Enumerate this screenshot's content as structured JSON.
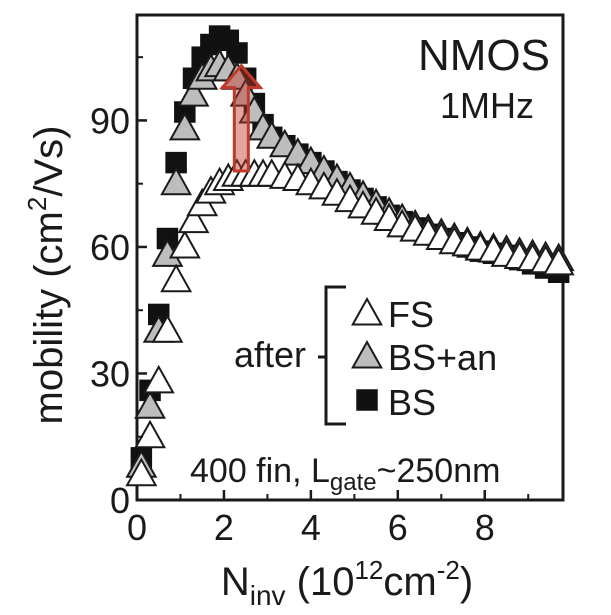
{
  "chart_data": {
    "type": "scatter",
    "annotations": {
      "device": "NMOS",
      "frequency": "1MHz",
      "condition_prefix": "after",
      "sample_main": "400 fin, L",
      "sample_sub": "gate",
      "sample_tail": "~250nm"
    },
    "xaxis": {
      "label_main": "N",
      "label_sub": "inv",
      "label_unit_open": " (10",
      "label_unit_exp": "12",
      "label_unit_mid": "cm",
      "label_unit_exp2": "-2",
      "label_unit_close": ")",
      "range": [
        0,
        9.8
      ],
      "ticks": [
        0,
        2,
        4,
        6,
        8
      ],
      "tick_labels": [
        "0",
        "2",
        "4",
        "6",
        "8"
      ]
    },
    "yaxis": {
      "label_main": "mobility (cm",
      "label_exp": "2",
      "label_tail": "/Vs)",
      "range": [
        0,
        115
      ],
      "ticks": [
        0,
        30,
        60,
        90
      ],
      "tick_labels": [
        "0",
        "30",
        "60",
        "90"
      ]
    },
    "series": [
      {
        "name": "FS",
        "marker": "triangle",
        "fill": "#ffffff",
        "stroke": "#1a1a1a",
        "x": [
          0.1,
          0.3,
          0.5,
          0.7,
          0.9,
          1.1,
          1.3,
          1.5,
          1.7,
          1.9,
          2.1,
          2.3,
          2.5,
          2.7,
          2.9,
          3.1,
          3.4,
          3.7,
          4.0,
          4.3,
          4.6,
          4.9,
          5.2,
          5.5,
          5.8,
          6.1,
          6.4,
          6.7,
          7.0,
          7.3,
          7.6,
          7.9,
          8.2,
          8.5,
          8.8,
          9.1,
          9.4,
          9.7
        ],
        "y": [
          6,
          15,
          28,
          40,
          52,
          60,
          66,
          70,
          73,
          75,
          76,
          77,
          77,
          77,
          77,
          77,
          76.5,
          76,
          75,
          74,
          72.5,
          71,
          69.5,
          68,
          66.5,
          65,
          64,
          63,
          62,
          61,
          60.5,
          59.5,
          59,
          58,
          57.5,
          57,
          56.5,
          56
        ]
      },
      {
        "name": "BS+an",
        "marker": "triangle",
        "fill": "#bdbdbd",
        "stroke": "#1a1a1a",
        "x": [
          0.1,
          0.3,
          0.5,
          0.7,
          0.9,
          1.1,
          1.3,
          1.5,
          1.7,
          1.9,
          2.1,
          2.3,
          2.5,
          2.7,
          2.9,
          3.1,
          3.4,
          3.7,
          4.0,
          4.3,
          4.6,
          4.9,
          5.2,
          5.5,
          5.8,
          6.1,
          6.4,
          6.7,
          7.0,
          7.3,
          7.6,
          7.9,
          8.2,
          8.5,
          8.8,
          9.1,
          9.4,
          9.7
        ],
        "y": [
          8,
          22,
          40,
          58,
          75,
          88,
          96,
          100,
          102,
          103,
          102,
          100,
          96,
          92,
          88,
          86,
          84,
          82,
          80,
          78,
          76,
          74,
          72,
          70,
          68,
          66.5,
          65,
          64,
          63,
          62,
          61,
          60,
          59.5,
          59,
          58.5,
          58,
          57.5,
          57
        ]
      },
      {
        "name": "BS",
        "marker": "square",
        "fill": "#111111",
        "stroke": "#111111",
        "x": [
          0.1,
          0.3,
          0.5,
          0.7,
          0.9,
          1.1,
          1.3,
          1.5,
          1.7,
          1.9,
          2.1,
          2.3,
          2.5,
          2.7,
          2.9,
          3.1,
          3.4,
          3.7,
          4.0,
          4.3,
          4.6,
          4.9,
          5.2,
          5.5,
          5.8,
          6.1,
          6.4,
          6.7,
          7.0,
          7.3,
          7.6,
          7.9,
          8.2,
          8.5,
          8.8,
          9.1,
          9.4,
          9.7
        ],
        "y": [
          10,
          26,
          44,
          62,
          80,
          92,
          100,
          105,
          108,
          110,
          109,
          106,
          100,
          94,
          89,
          86,
          84,
          82,
          80,
          78,
          75.5,
          73.5,
          71.5,
          69.5,
          67.5,
          66,
          64.5,
          63,
          62,
          61,
          60,
          59,
          58.5,
          58,
          57,
          56,
          55,
          54
        ]
      }
    ],
    "arrow": {
      "x": 2.4,
      "y_from": 78,
      "y_to": 103,
      "color": "#c0392b"
    },
    "grid": false,
    "legend_position": "right"
  }
}
